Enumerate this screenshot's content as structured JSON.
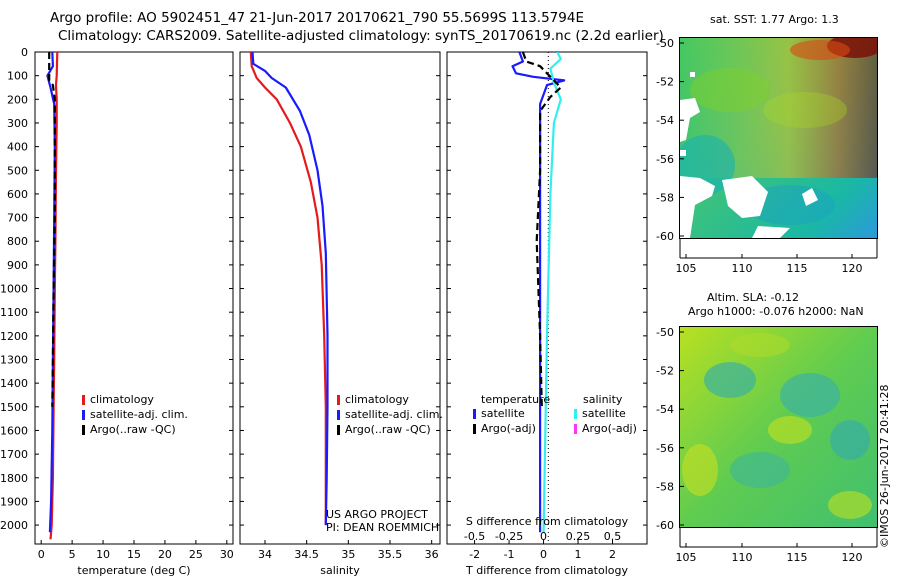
{
  "header": {
    "line1": "Argo profile: AO 5902451_47 21-Jun-2017 20170621_790 55.5699S 113.5794E",
    "line2": "Climatology: CARS2009. Satellite-adjusted climatology: synTS_20170619.nc (2.2d earlier)"
  },
  "colors": {
    "climatology": "#e41a1c",
    "satellite": "#1a1aff",
    "argo": "#000000",
    "sat_salinity": "#33eeee",
    "argo_adj_salinity": "#ff33ff"
  },
  "legends": {
    "temperature": [
      "climatology",
      "satellite-adj. clim.",
      "Argo(..raw -QC)"
    ],
    "salinity": [
      "climatology",
      "satellite-adj. clim.",
      "Argo(..raw -QC)"
    ],
    "difference": {
      "t_heading": "temperature",
      "s_heading": "salinity",
      "t_items": [
        "satellite",
        "Argo(-adj)"
      ],
      "s_items": [
        "satellite",
        "Argo(-adj)"
      ]
    }
  },
  "credits": {
    "line1": "US ARGO PROJECT",
    "line2": "PI: DEAN ROEMMICH"
  },
  "maps": {
    "sst_title": "sat. SST: 1.77 Argo: 1.3",
    "sla_title1": "Altim. SLA: -0.12",
    "sla_title2": "Argo h1000: -0.076 h2000: NaN",
    "stamp": "©IMOS 26-Jun-2017 20:41:28",
    "lat_ticks": [
      -50,
      -52,
      -54,
      -56,
      -58,
      -60
    ],
    "lon_ticks": [
      105,
      110,
      115,
      120
    ]
  },
  "chart_data": [
    {
      "type": "line",
      "title": "",
      "xlabel": "temperature (deg C)",
      "ylabel": "",
      "xlim": [
        -1,
        31
      ],
      "ylim": [
        2080,
        0
      ],
      "xticks": [
        0,
        5,
        10,
        15,
        20,
        25,
        30
      ],
      "yticks": [
        0,
        100,
        200,
        300,
        400,
        500,
        600,
        700,
        800,
        900,
        1000,
        1100,
        1200,
        1300,
        1400,
        1500,
        1600,
        1700,
        1800,
        1900,
        2000
      ],
      "series": [
        {
          "name": "climatology",
          "color": "#e41a1c",
          "x": [
            2.6,
            2.5,
            2.4,
            2.5,
            2.5,
            2.4,
            2.3,
            2.2,
            2.1,
            2.0,
            1.9,
            1.7,
            1.5
          ],
          "y": [
            0,
            100,
            140,
            200,
            300,
            500,
            800,
            1000,
            1300,
            1500,
            1800,
            2000,
            2060
          ]
        },
        {
          "name": "satellite-adj. clim.",
          "color": "#1a1aff",
          "x": [
            1.8,
            1.9,
            1.0,
            1.5,
            2.1,
            2.2,
            2.1,
            2.0,
            1.9,
            1.8,
            1.6,
            1.4
          ],
          "y": [
            0,
            60,
            100,
            150,
            220,
            400,
            700,
            1000,
            1300,
            1600,
            1900,
            2030
          ]
        },
        {
          "name": "Argo(..raw -QC)",
          "color": "#000000",
          "x": [
            1.3,
            1.3,
            1.9,
            2.2,
            2.2,
            2.2,
            2.0,
            1.9,
            1.8
          ],
          "y": [
            0,
            120,
            140,
            200,
            400,
            700,
            1000,
            1300,
            1500
          ]
        }
      ]
    },
    {
      "type": "line",
      "title": "",
      "xlabel": "salinity",
      "ylabel": "",
      "xlim": [
        33.7,
        36.1
      ],
      "ylim": [
        2080,
        0
      ],
      "xticks": [
        34,
        34.5,
        35,
        35.5,
        36
      ],
      "xtick_labels": [
        "34",
        "34.5",
        "35",
        "35.5",
        "36"
      ],
      "series": [
        {
          "name": "climatology",
          "color": "#e41a1c",
          "x": [
            33.83,
            33.84,
            33.9,
            34.0,
            34.14,
            34.3,
            34.43,
            34.55,
            34.63,
            34.68,
            34.71,
            34.73,
            34.73,
            34.73
          ],
          "y": [
            0,
            60,
            110,
            150,
            200,
            300,
            400,
            550,
            700,
            900,
            1200,
            1500,
            1800,
            2000
          ]
        },
        {
          "name": "satellite-adj. clim.",
          "color": "#1a1aff",
          "x": [
            33.85,
            33.86,
            34.0,
            34.08,
            34.25,
            34.42,
            34.53,
            34.63,
            34.69,
            34.73,
            34.75,
            34.75,
            34.74,
            34.73
          ],
          "y": [
            0,
            50,
            80,
            110,
            150,
            250,
            350,
            500,
            650,
            850,
            1200,
            1500,
            1800,
            2000
          ]
        }
      ]
    },
    {
      "type": "line",
      "title": "",
      "xlabel": "T difference from climatology",
      "xlabel_top": "S difference from climatology",
      "ylabel": "",
      "xlim": [
        -2.8,
        3.0
      ],
      "ylim": [
        2080,
        0
      ],
      "xticks": [
        -2,
        -1,
        0,
        1,
        2
      ],
      "top_ticks": [
        -0.5,
        -0.25,
        0,
        0.25,
        0.5
      ],
      "top_tick_labels": [
        "-0.5",
        "-0.25",
        "0",
        "0.25",
        "0.5"
      ],
      "series": [
        {
          "name": "temperature satellite",
          "color": "#1a1aff",
          "x": [
            -0.7,
            -0.6,
            -0.9,
            -0.8,
            -0.3,
            0.6,
            0.1,
            -0.1,
            -0.1,
            -0.1,
            -0.1,
            -0.1
          ],
          "y": [
            0,
            40,
            60,
            90,
            105,
            120,
            140,
            220,
            500,
            1000,
            1500,
            2030
          ]
        },
        {
          "name": "salinity satellite",
          "color": "#33eeee",
          "x": [
            0.4,
            0.5,
            0.2,
            0.3,
            0.5,
            0.3,
            0.2,
            0.1,
            0.0
          ],
          "y": [
            0,
            30,
            70,
            130,
            200,
            300,
            600,
            1200,
            2030
          ]
        },
        {
          "name": "temperature Argo(-adj)",
          "color": "#000000",
          "x": [
            -0.6,
            -0.5,
            -0.1,
            0.3,
            0.5,
            0.2,
            -0.1,
            -0.1,
            -0.2,
            -0.1,
            -0.05
          ],
          "y": [
            0,
            40,
            60,
            120,
            150,
            190,
            250,
            500,
            800,
            1200,
            1500
          ]
        }
      ]
    }
  ]
}
